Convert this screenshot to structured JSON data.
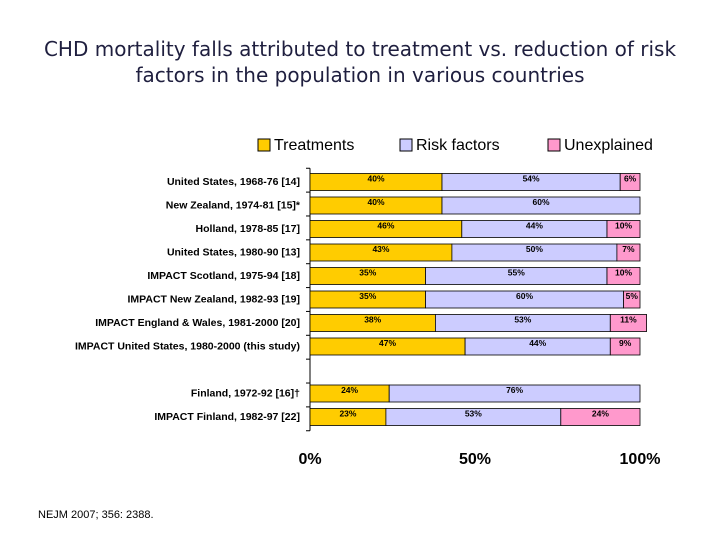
{
  "chart_data": {
    "type": "stacked-bar-horizontal",
    "title": "CHD mortality falls attributed to treatment vs. reduction of risk factors in the population in various countries",
    "source": "NEJM 2007; 356: 2388.",
    "categories": [
      "United States, 1968-76 [14]",
      "New Zealand, 1974-81 [15]*",
      "Holland, 1978-85 [17]",
      "United States, 1980-90 [13]",
      "IMPACT Scotland, 1975-94 [18]",
      "IMPACT New Zealand, 1982-93 [19]",
      "IMPACT England & Wales, 1981-2000 [20]",
      "IMPACT United States, 1980-2000 (this study)",
      null,
      "Finland, 1972-92 [16]†",
      "IMPACT Finland, 1982-97 [22]"
    ],
    "series": [
      {
        "name": "Treatments",
        "color": "#ffcc00",
        "values": [
          40,
          40,
          46,
          43,
          35,
          35,
          38,
          47,
          null,
          24,
          23
        ],
        "value_labels": [
          "40%",
          "40%",
          "46%",
          "43%",
          "35%",
          "35%",
          "38%",
          "47%",
          null,
          "24%",
          "23%"
        ]
      },
      {
        "name": "Risk factors",
        "color": "#ccccff",
        "values": [
          54,
          60,
          44,
          50,
          55,
          60,
          53,
          44,
          null,
          76,
          53
        ],
        "value_labels": [
          "54%",
          "60%",
          "44%",
          "50%",
          "55%",
          "60%",
          "53%",
          "44%",
          null,
          "76%",
          "53%"
        ]
      },
      {
        "name": "Unexplained",
        "color": "#ff99cc",
        "values": [
          6,
          null,
          10,
          7,
          10,
          5,
          11,
          9,
          null,
          null,
          24
        ],
        "value_labels": [
          "6%",
          null,
          "10%",
          "7%",
          "10%",
          "5%",
          "11%",
          "9%",
          null,
          null,
          "24%"
        ]
      }
    ],
    "xlim": [
      0,
      100
    ],
    "xticks": [
      {
        "value": 0,
        "label": "0%"
      },
      {
        "value": 50,
        "label": "50%"
      },
      {
        "value": 100,
        "label": "100%"
      }
    ],
    "legend": "top"
  }
}
